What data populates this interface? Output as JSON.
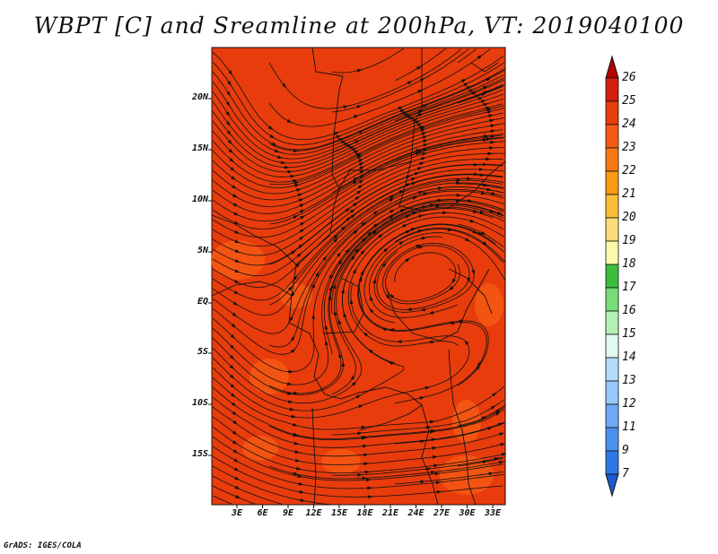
{
  "title": "WBPT [C] and Sreamline at 200hPa, VT: 2019040100",
  "credit": "GrADS: IGES/COLA",
  "map": {
    "lat_labels": [
      "20N",
      "15N",
      "10N",
      "5N",
      "EQ",
      "5S",
      "10S",
      "15S"
    ],
    "lon_labels": [
      "3E",
      "6E",
      "9E",
      "12E",
      "15E",
      "18E",
      "21E",
      "24E",
      "27E",
      "30E",
      "33E"
    ],
    "fill_color": "#e83c0c",
    "warm_color": "#f55a14",
    "streamline_color": "#111111"
  },
  "colorbar": {
    "levels": [
      "26",
      "25",
      "24",
      "23",
      "22",
      "21",
      "20",
      "19",
      "18",
      "17",
      "16",
      "15",
      "14",
      "13",
      "12",
      "11",
      "9",
      "7"
    ],
    "colors": [
      "#b40000",
      "#d21e0a",
      "#e83c0c",
      "#f55a14",
      "#fa7814",
      "#fa9b14",
      "#fcbe37",
      "#fcdc78",
      "#fafaaa",
      "#3cbe3c",
      "#78dc78",
      "#b4f0b4",
      "#e1faf0",
      "#b4dcfa",
      "#96c8fa",
      "#6eaaf5",
      "#4b91f0",
      "#2d78e6",
      "#1e5ad2"
    ]
  }
}
